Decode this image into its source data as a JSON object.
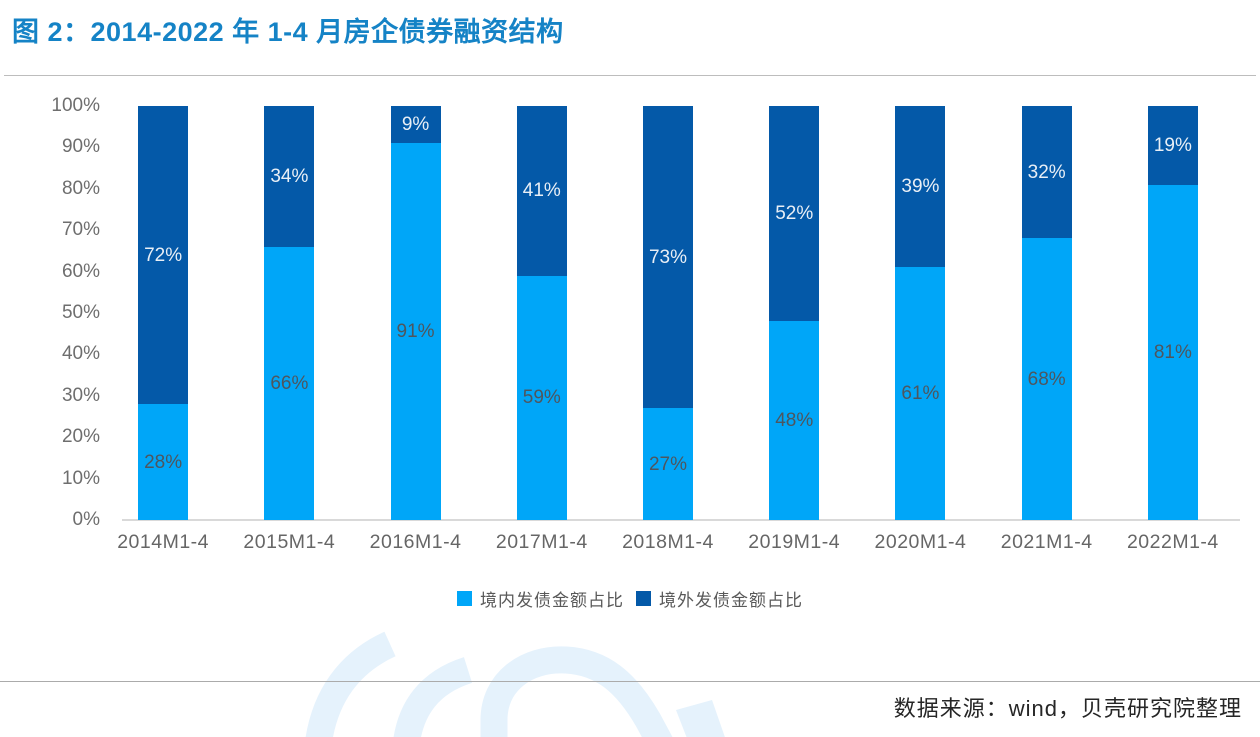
{
  "page": {
    "title": "图 2：2014-2022 年 1-4 月房企债券融资结构",
    "source_note": "数据来源：wind，贝壳研究院整理"
  },
  "colors": {
    "title_blue": "#1583C6",
    "domestic_light_blue": "#00A6F8",
    "overseas_dark_blue": "#0459A8",
    "axis_text_gray": "#6E6E6E",
    "label_on_light": "#4E565E",
    "label_on_dark": "#E9EFF6",
    "axis_line_gray": "#D9D9D9",
    "watermark_light_blue": "#E5F2FC"
  },
  "chart_data": {
    "type": "bar",
    "stacked": true,
    "title": "图 2：2014-2022 年 1-4 月房企债券融资结构",
    "categories": [
      "2014M1-4",
      "2015M1-4",
      "2016M1-4",
      "2017M1-4",
      "2018M1-4",
      "2019M1-4",
      "2020M1-4",
      "2021M1-4",
      "2022M1-4"
    ],
    "series": [
      {
        "name": "境内发债金额占比",
        "color": "#00A6F8",
        "label_color": "#4E565E",
        "values": [
          28,
          66,
          91,
          59,
          27,
          48,
          61,
          68,
          81
        ]
      },
      {
        "name": "境外发债金额占比",
        "color": "#0459A8",
        "label_color": "#E9EFF6",
        "values": [
          72,
          34,
          9,
          41,
          73,
          52,
          39,
          32,
          19
        ]
      }
    ],
    "value_suffix": "%",
    "y_ticks": [
      0,
      10,
      20,
      30,
      40,
      50,
      60,
      70,
      80,
      90,
      100
    ],
    "y_tick_suffix": "%",
    "ylim": [
      0,
      100
    ],
    "grid": false,
    "legend_position": "bottom",
    "xlabel": "",
    "ylabel": ""
  }
}
